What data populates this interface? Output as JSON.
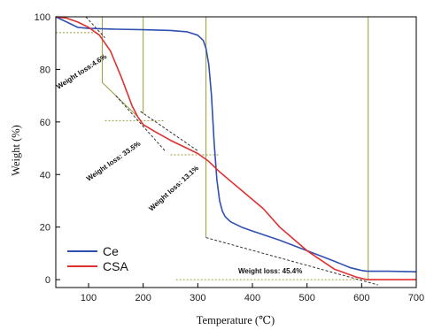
{
  "chart_data": {
    "type": "line",
    "xlabel": "Temperature (℃)",
    "ylabel": "Weight (%)",
    "xlim": [
      40,
      700
    ],
    "ylim": [
      -3,
      100
    ],
    "xticks": [
      100,
      200,
      300,
      400,
      500,
      600,
      700
    ],
    "yticks": [
      0,
      20,
      40,
      60,
      80,
      100
    ],
    "grid": false,
    "legend": "bottom-left",
    "series": [
      {
        "name": "Ce",
        "color": "#3050b0",
        "x": [
          40,
          60,
          80,
          100,
          150,
          200,
          250,
          280,
          300,
          310,
          315,
          320,
          325,
          330,
          335,
          340,
          345,
          350,
          360,
          380,
          400,
          450,
          500,
          550,
          580,
          600,
          610,
          620,
          650,
          700
        ],
        "y": [
          100,
          98,
          96,
          95.6,
          95.3,
          95.1,
          94.8,
          94.3,
          93,
          91,
          88,
          82,
          70,
          52,
          38,
          30,
          26,
          24,
          22,
          20,
          18.5,
          15,
          11,
          7,
          4.5,
          3.5,
          3.2,
          3.2,
          3.2,
          3
        ]
      },
      {
        "name": "CSA",
        "color": "#e03030",
        "x": [
          40,
          60,
          80,
          100,
          120,
          140,
          160,
          180,
          190,
          200,
          220,
          250,
          280,
          300,
          320,
          340,
          360,
          380,
          400,
          420,
          450,
          500,
          550,
          590,
          610,
          620,
          650,
          700
        ],
        "y": [
          100,
          99.5,
          98,
          96,
          93,
          87,
          77,
          66,
          62,
          59,
          56.5,
          53,
          50,
          48,
          45,
          41,
          37.5,
          34,
          30.5,
          27,
          20,
          11,
          4,
          1,
          0,
          0,
          0,
          0
        ]
      }
    ],
    "annotations": [
      {
        "text": "Weight loss:4.6%"
      },
      {
        "text": "Weight loss: 33.5%"
      },
      {
        "text": "Weight loss: 13.1%"
      },
      {
        "text": "Weight loss: 45.4%"
      }
    ]
  }
}
